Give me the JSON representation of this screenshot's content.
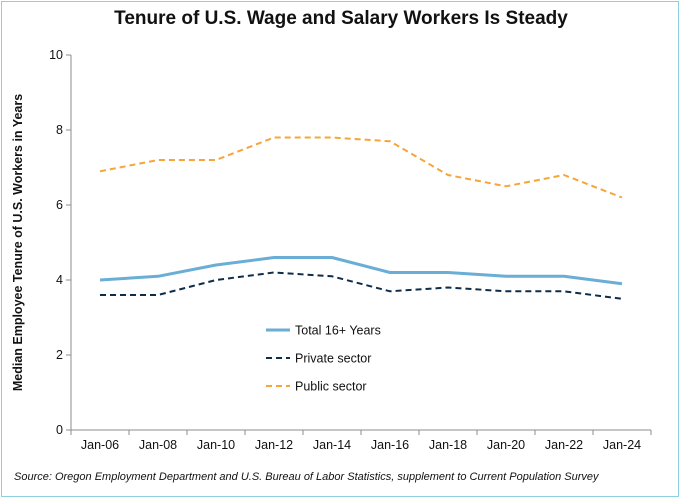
{
  "chart_data": {
    "type": "line",
    "title": "Tenure of U.S. Wage and Salary Workers Is Steady",
    "ylabel": "Median Employee Tenure of U.S. Workers in Years",
    "xlabel": "",
    "categories": [
      "Jan-06",
      "Jan-08",
      "Jan-10",
      "Jan-12",
      "Jan-14",
      "Jan-16",
      "Jan-18",
      "Jan-20",
      "Jan-22",
      "Jan-24"
    ],
    "ylim": [
      0,
      10
    ],
    "yticks": [
      0,
      2,
      4,
      6,
      8,
      10
    ],
    "grid": false,
    "legend_position": "center-left",
    "series": [
      {
        "name": "Total 16+ Years",
        "color": "#6aaed6",
        "style": "solid",
        "values": [
          4.0,
          4.1,
          4.4,
          4.6,
          4.6,
          4.2,
          4.2,
          4.1,
          4.1,
          3.9
        ]
      },
      {
        "name": "Private sector",
        "color": "#0d2d4a",
        "style": "dashed",
        "values": [
          3.6,
          3.6,
          4.0,
          4.2,
          4.1,
          3.7,
          3.8,
          3.7,
          3.7,
          3.5
        ]
      },
      {
        "name": "Public sector",
        "color": "#f5a53a",
        "style": "dashed",
        "values": [
          6.9,
          7.2,
          7.2,
          7.8,
          7.8,
          7.7,
          6.8,
          6.5,
          6.8,
          6.2
        ]
      }
    ],
    "source": "Source: Oregon Employment Department and U.S. Bureau of Labor Statistics, supplement to Current Population Survey"
  }
}
